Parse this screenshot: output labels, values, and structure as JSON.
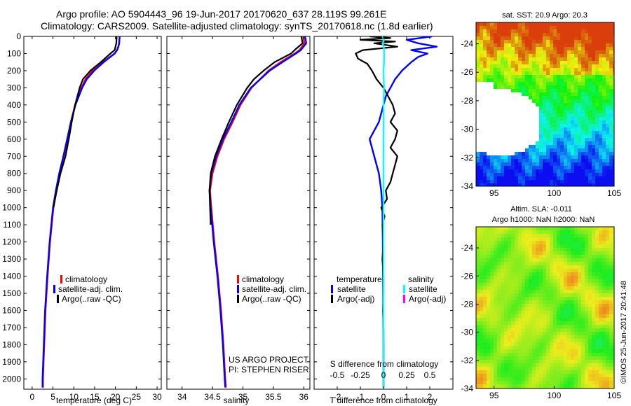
{
  "header": {
    "line1": "Argo profile: AO 5904443_96 19-Jun-2017 20170620_637 28.119S 99.261E",
    "line2": "Climatology: CARS2009. Satellite-adjusted climatology: synTS_20170618.nc (1.8d earlier)"
  },
  "side_label": "©IMOS 25-Jun-2017 20:41:48",
  "project_note": {
    "line1": "US ARGO PROJECT",
    "line2": "PI: STEPHEN RISER"
  },
  "colors": {
    "climatology": "#ff0000",
    "satellite": "#0000ff",
    "argo": "#000000",
    "satellite_salinity": "#00ffff",
    "argo_salinity": "#ff00ff"
  },
  "chart_data": [
    {
      "id": "temperature",
      "type": "line",
      "xlabel": "temperature (deg C)",
      "ylabel": "",
      "xlim": [
        -2,
        31
      ],
      "ylim": [
        2060,
        0
      ],
      "xticks": [
        "0",
        "5",
        "10",
        "15",
        "20",
        "25",
        "30"
      ],
      "yticks": [
        "0",
        "100",
        "200",
        "300",
        "400",
        "500",
        "600",
        "700",
        "800",
        "900",
        "1000",
        "1100",
        "1200",
        "1300",
        "1400",
        "1500",
        "1600",
        "1700",
        "1800",
        "1900",
        "2000"
      ],
      "legend": [
        "climatology",
        "satellite-adj. clim.",
        "Argo(..raw -QC)"
      ],
      "series": [
        {
          "name": "climatology",
          "color": "#ff0000",
          "depth": [
            0,
            40,
            60,
            80,
            100,
            150,
            200,
            250,
            300,
            400,
            500,
            600,
            700,
            800,
            900,
            1000,
            1200,
            1400,
            1600,
            1800,
            2000,
            2050
          ],
          "values": [
            21.0,
            20.9,
            20.7,
            20.4,
            19.8,
            17.0,
            14.5,
            12.8,
            11.8,
            10.3,
            9.3,
            8.5,
            7.6,
            6.6,
            5.8,
            5.1,
            4.3,
            3.7,
            3.2,
            2.9,
            2.6,
            2.6
          ]
        },
        {
          "name": "satellite-adj. clim.",
          "color": "#0000ff",
          "depth": [
            0,
            40,
            60,
            80,
            100,
            150,
            200,
            250,
            300,
            400,
            500,
            600,
            700,
            800,
            900,
            1000,
            1200,
            1400,
            1600,
            1800,
            2000,
            2050
          ],
          "values": [
            21.0,
            20.9,
            20.7,
            20.4,
            19.8,
            17.2,
            14.9,
            13.1,
            12.0,
            10.4,
            9.3,
            8.4,
            7.5,
            6.5,
            5.7,
            5.0,
            4.2,
            3.6,
            3.1,
            2.8,
            2.5,
            2.5
          ]
        },
        {
          "name": "Argo(..raw -QC)",
          "color": "#000000",
          "depth": [
            0,
            40,
            60,
            80,
            90,
            100,
            150,
            200,
            250,
            300,
            400,
            500,
            600,
            700,
            800,
            900,
            1000
          ],
          "values": [
            20.3,
            20.2,
            20.0,
            19.8,
            19.3,
            18.8,
            16.5,
            14.0,
            12.2,
            11.4,
            10.3,
            9.5,
            8.8,
            8.0,
            6.8,
            5.9,
            5.1
          ]
        }
      ]
    },
    {
      "id": "salinity",
      "type": "line",
      "xlabel": "salinity",
      "ylabel": "",
      "xlim": [
        33.75,
        36.1
      ],
      "ylim": [
        2060,
        0
      ],
      "xticks": [
        "34",
        "34.5",
        "35",
        "35.5",
        "36"
      ],
      "legend": [
        "climatology",
        "satellite-adj. clim.",
        "Argo(..raw -QC)"
      ],
      "series": [
        {
          "name": "climatology",
          "color": "#ff0000",
          "depth": [
            0,
            40,
            80,
            100,
            150,
            200,
            300,
            400,
            500,
            600,
            700,
            800,
            900,
            1000,
            1200,
            1400,
            1600,
            1800,
            2000,
            2050
          ],
          "values": [
            35.99,
            36.01,
            35.93,
            35.85,
            35.62,
            35.42,
            35.14,
            34.96,
            34.83,
            34.69,
            34.58,
            34.5,
            34.46,
            34.48,
            34.53,
            34.59,
            34.64,
            34.68,
            34.71,
            34.72
          ]
        },
        {
          "name": "satellite-adj. clim.",
          "color": "#0000ff",
          "depth": [
            0,
            40,
            80,
            100,
            150,
            200,
            300,
            400,
            500,
            600,
            700,
            800,
            900,
            1000,
            1200,
            1400,
            1600,
            1800,
            2000,
            2050
          ],
          "values": [
            36.02,
            36.04,
            35.95,
            35.87,
            35.65,
            35.44,
            35.13,
            34.94,
            34.81,
            34.67,
            34.56,
            34.48,
            34.45,
            34.47,
            34.52,
            34.58,
            34.63,
            34.67,
            34.7,
            34.71
          ]
        },
        {
          "name": "Argo(..raw -QC)",
          "color": "#000000",
          "depth": [
            0,
            40,
            70,
            100,
            150,
            200,
            250,
            300,
            400,
            500,
            600,
            700,
            800,
            900,
            1000,
            1100
          ],
          "values": [
            35.96,
            35.98,
            35.88,
            35.79,
            35.52,
            35.34,
            35.18,
            35.07,
            34.9,
            34.77,
            34.65,
            34.54,
            34.47,
            34.45,
            34.46,
            34.47
          ]
        }
      ]
    },
    {
      "id": "differences",
      "type": "line",
      "xlabel": "T difference from climatology",
      "xlabel_top": "S difference from climatology",
      "ylabel": "",
      "xlim": [
        -3,
        3
      ],
      "ylim": [
        2060,
        0
      ],
      "xticks": [
        "-2",
        "-1",
        "0",
        "1",
        "2"
      ],
      "xticks_top": [
        "-0.5",
        "-0.25",
        "0",
        "0.25",
        "0.5"
      ],
      "legend_headers": [
        "temperature",
        "salinity"
      ],
      "legend": [
        "satellite",
        "Argo(-adj)",
        "satellite",
        "Argo(-adj)"
      ],
      "series": [
        {
          "name": "satellite",
          "color": "#0000ff",
          "depth": [
            0,
            20,
            40,
            60,
            80,
            100,
            120,
            150,
            200,
            250,
            300,
            350,
            400,
            450,
            500,
            550,
            600,
            650,
            700,
            800,
            900,
            1000,
            1200,
            1400,
            1600,
            1800,
            2000,
            2050
          ],
          "values": [
            2.1,
            1.0,
            1.5,
            2.3,
            1.2,
            1.9,
            1.5,
            1.2,
            0.8,
            0.5,
            0.3,
            0.1,
            0.0,
            -0.1,
            -0.2,
            -0.4,
            -0.6,
            -0.5,
            -0.4,
            -0.2,
            -0.1,
            -0.05,
            -0.03,
            -0.02,
            -0.01,
            0.0,
            0.0,
            0.0
          ]
        },
        {
          "name": "Argo(-adj)",
          "color": "#000000",
          "depth": [
            0,
            10,
            20,
            30,
            40,
            60,
            80,
            100,
            130,
            160,
            200,
            250,
            300,
            350,
            400,
            450,
            500,
            550,
            600,
            650,
            700,
            750,
            800,
            850,
            900,
            950,
            1000,
            1050,
            1100,
            1200,
            1300,
            1400,
            1500,
            1600,
            1700,
            1800,
            1900,
            2000,
            2050
          ],
          "values": [
            -0.6,
            0.3,
            -1.0,
            0.5,
            -0.4,
            0.6,
            -0.9,
            -1.2,
            -1.1,
            -0.7,
            -0.5,
            -0.3,
            0.0,
            0.2,
            0.4,
            0.5,
            0.3,
            0.6,
            0.5,
            0.3,
            0.6,
            0.5,
            0.4,
            0.3,
            0.1,
            0.15,
            -0.1,
            0.05,
            -0.05,
            0.0,
            -0.05,
            0.0,
            0.0,
            -0.02,
            0.0,
            0.0,
            0.0,
            0.0,
            0.0
          ]
        },
        {
          "name": "satellite (salinity)",
          "color": "#00ffff",
          "depth": [
            0,
            20,
            40,
            60,
            100,
            150,
            200,
            300,
            400,
            500,
            600,
            800,
            1000,
            1400,
            1800,
            2050
          ],
          "values": [
            -0.05,
            0.02,
            -0.04,
            0.01,
            0.03,
            0.02,
            0.0,
            0.02,
            0.0,
            0.01,
            0.0,
            0.0,
            0.0,
            0.0,
            0.0,
            0.0
          ]
        }
      ]
    },
    {
      "id": "sst_map",
      "type": "heatmap",
      "title": "sat. SST: 20.9 Argo: 20.3",
      "xlim": [
        93.5,
        105
      ],
      "ylim": [
        -34,
        -22.5
      ],
      "xticks": [
        "95",
        "100",
        "105"
      ],
      "yticks": [
        "-24",
        "-26",
        "-28",
        "-30",
        "-32",
        "-34"
      ]
    },
    {
      "id": "sla_map",
      "type": "heatmap",
      "title": "Altim. SLA: -0.011",
      "subtitle": "Argo h1000: NaN h2000: NaN",
      "xlim": [
        93.5,
        105
      ],
      "ylim": [
        -34,
        -22.5
      ],
      "xticks": [
        "95",
        "100",
        "105"
      ],
      "yticks": [
        "-24",
        "-26",
        "-28",
        "-30",
        "-32",
        "-34"
      ]
    }
  ]
}
